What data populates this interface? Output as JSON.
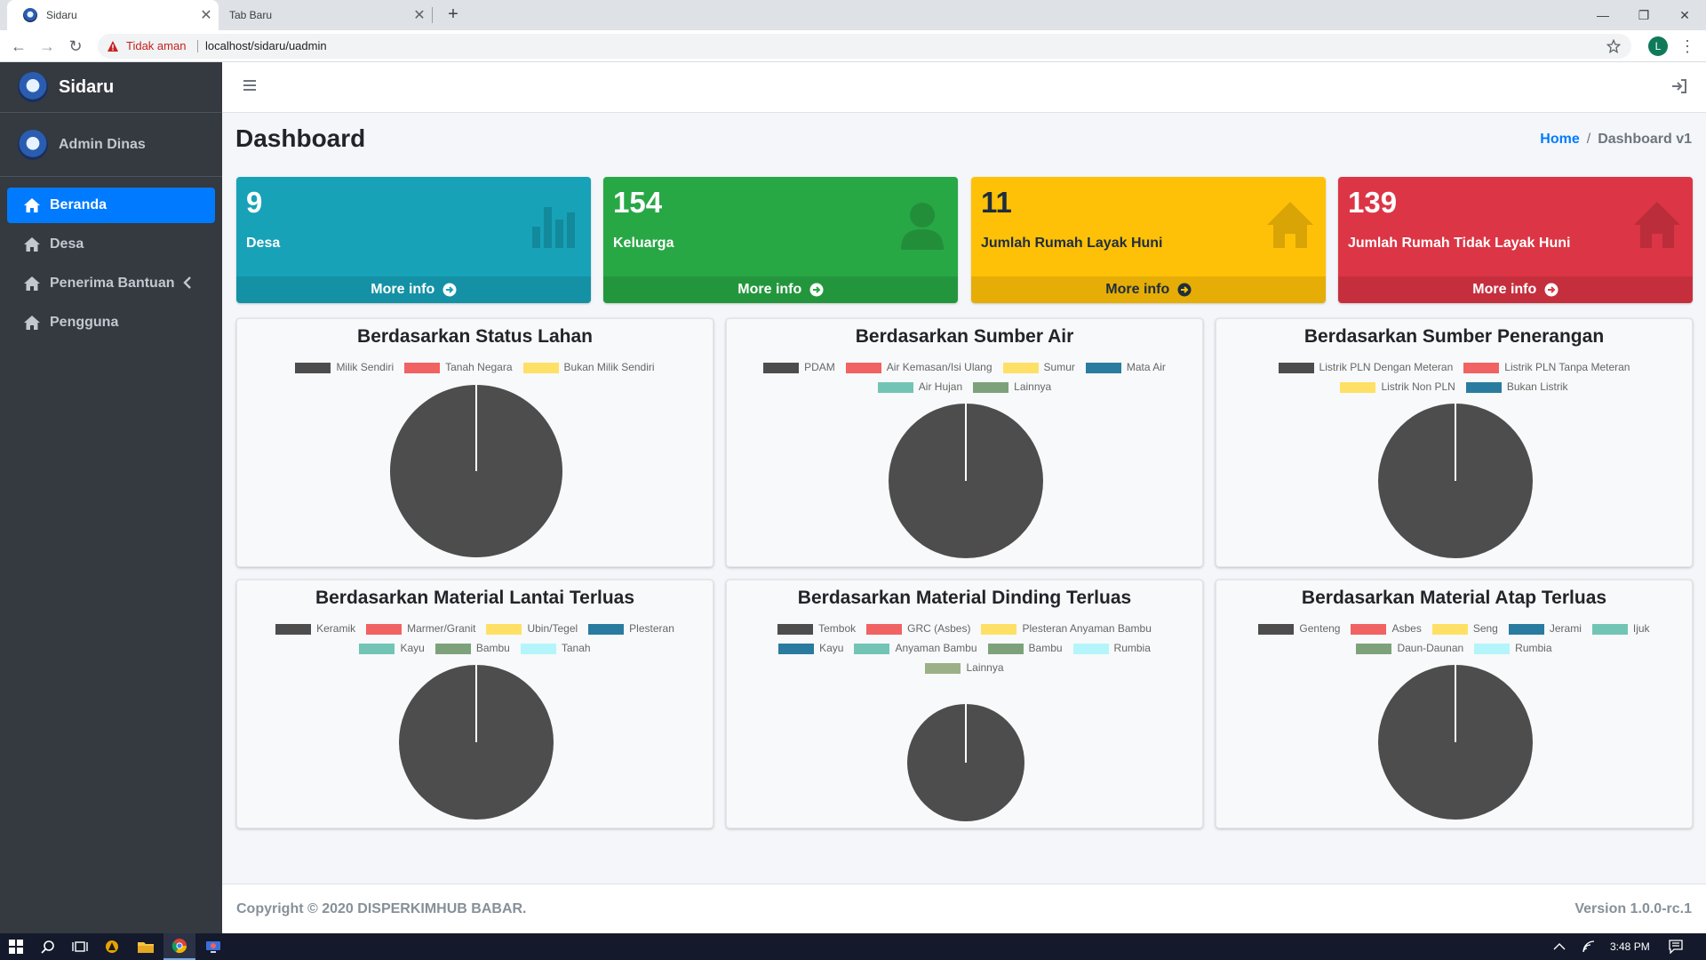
{
  "browser": {
    "tabs": [
      {
        "label": "Sidaru",
        "active": true
      },
      {
        "label": "Tab Baru",
        "active": false
      }
    ],
    "security_label": "Tidak aman",
    "url": "localhost/sidaru/uadmin",
    "profile_initial": "L"
  },
  "sidebar": {
    "brand": "Sidaru",
    "user": "Admin Dinas",
    "items": [
      {
        "label": "Beranda",
        "icon": "home-icon",
        "active": true
      },
      {
        "label": "Desa",
        "icon": "home-icon",
        "active": false
      },
      {
        "label": "Penerima Bantuan",
        "icon": "home-icon",
        "active": false,
        "expandable": true
      },
      {
        "label": "Pengguna",
        "icon": "home-icon",
        "active": false
      }
    ]
  },
  "page": {
    "title": "Dashboard",
    "breadcrumb": {
      "home": "Home",
      "separator": "/",
      "current": "Dashboard v1"
    }
  },
  "stat_boxes": [
    {
      "value": "9",
      "label": "Desa",
      "link": "More info",
      "color": "#17a2b8",
      "icon": "bar-chart-icon"
    },
    {
      "value": "154",
      "label": "Keluarga",
      "link": "More info",
      "color": "#28a745",
      "icon": "user-icon"
    },
    {
      "value": "11",
      "label": "Jumlah Rumah Layak Huni",
      "link": "More info",
      "color": "#ffc107",
      "icon": "house-icon"
    },
    {
      "value": "139",
      "label": "Jumlah Rumah Tidak Layak Huni",
      "link": "More info",
      "color": "#dc3545",
      "icon": "house-icon"
    }
  ],
  "chart_data": [
    {
      "type": "pie",
      "title": "Berdasarkan Status Lahan",
      "categories": [
        "Milik Sendiri",
        "Tanah Negara",
        "Bukan Milik Sendiri"
      ],
      "colors": [
        "#4d4d4d",
        "#f16263",
        "#ffe066"
      ],
      "values": [
        1,
        0,
        0
      ]
    },
    {
      "type": "pie",
      "title": "Berdasarkan Sumber Air",
      "categories": [
        "PDAM",
        "Air Kemasan/Isi Ulang",
        "Sumur",
        "Mata Air",
        "Air Hujan",
        "Lainnya"
      ],
      "colors": [
        "#4d4d4d",
        "#f16263",
        "#ffe066",
        "#2a7ba0",
        "#72c5b5",
        "#7da27b"
      ],
      "values": [
        1,
        0,
        0,
        0,
        0,
        0
      ]
    },
    {
      "type": "pie",
      "title": "Berdasarkan Sumber Penerangan",
      "categories": [
        "Listrik PLN Dengan Meteran",
        "Listrik PLN Tanpa Meteran",
        "Listrik Non PLN",
        "Bukan Listrik"
      ],
      "colors": [
        "#4d4d4d",
        "#f16263",
        "#ffe066",
        "#2a7ba0"
      ],
      "values": [
        1,
        0,
        0,
        0
      ]
    },
    {
      "type": "pie",
      "title": "Berdasarkan Material Lantai Terluas",
      "categories": [
        "Keramik",
        "Marmer/Granit",
        "Ubin/Tegel",
        "Plesteran",
        "Kayu",
        "Bambu",
        "Tanah"
      ],
      "colors": [
        "#4d4d4d",
        "#f16263",
        "#ffe066",
        "#2a7ba0",
        "#72c5b5",
        "#7da27b",
        "#b3f5fb"
      ],
      "values": [
        1,
        0,
        0,
        0,
        0,
        0,
        0
      ]
    },
    {
      "type": "pie",
      "title": "Berdasarkan Material Dinding Terluas",
      "categories": [
        "Tembok",
        "GRC (Asbes)",
        "Plesteran Anyaman Bambu",
        "Kayu",
        "Anyaman Bambu",
        "Bambu",
        "Rumbia",
        "Lainnya"
      ],
      "colors": [
        "#4d4d4d",
        "#f16263",
        "#ffe066",
        "#2a7ba0",
        "#72c5b5",
        "#7da27b",
        "#b3f5fb",
        "#9bb087"
      ],
      "values": [
        1,
        0,
        0,
        0,
        0,
        0,
        0,
        0
      ]
    },
    {
      "type": "pie",
      "title": "Berdasarkan Material Atap Terluas",
      "categories": [
        "Genteng",
        "Asbes",
        "Seng",
        "Jerami",
        "Ijuk",
        "Daun-Daunan",
        "Rumbia"
      ],
      "colors": [
        "#4d4d4d",
        "#f16263",
        "#ffe066",
        "#2a7ba0",
        "#72c5b5",
        "#7da27b",
        "#b3f5fb"
      ],
      "values": [
        1,
        0,
        0,
        0,
        0,
        0,
        0
      ]
    }
  ],
  "footer": {
    "copyright": "Copyright © 2020 DISPERKIMHUB BABAR.",
    "version": "Version 1.0.0-rc.1"
  },
  "taskbar": {
    "time": "3:48 PM"
  }
}
